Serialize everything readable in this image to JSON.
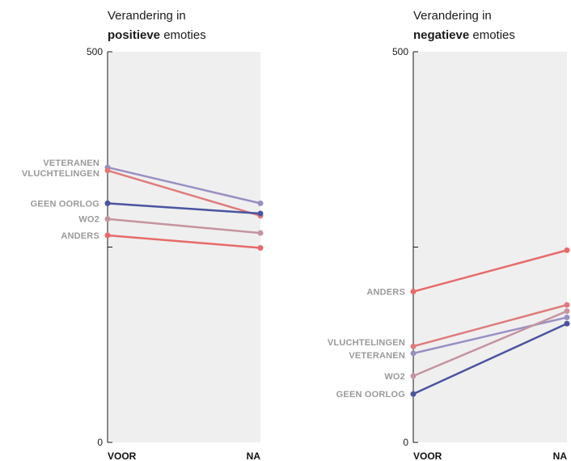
{
  "charts": [
    {
      "title_line1": "Verandering in",
      "title_bold": "positieve",
      "title_rest": " emoties",
      "y_top_label": "500",
      "y_zero_label": "0",
      "x_labels": [
        "VOOR",
        "NA"
      ]
    },
    {
      "title_line1": "Verandering in",
      "title_bold": "negatieve",
      "title_rest": " emoties",
      "y_top_label": "500",
      "y_zero_label": "0",
      "x_labels": [
        "VOOR",
        "NA"
      ]
    }
  ],
  "chart_data": [
    {
      "type": "line",
      "title": "Verandering in positieve emoties",
      "categories": [
        "VOOR",
        "NA"
      ],
      "ylim": [
        0,
        500
      ],
      "grid": false,
      "series": [
        {
          "name": "VETERANEN",
          "values": [
            352,
            306
          ],
          "color": "#9a8fc2"
        },
        {
          "name": "VLUCHTELINGEN",
          "values": [
            348,
            290
          ],
          "color": "#e07a7a"
        },
        {
          "name": "GEEN OORLOG",
          "values": [
            306,
            293
          ],
          "color": "#4a54a0"
        },
        {
          "name": "WO2",
          "values": [
            286,
            268
          ],
          "color": "#c4949f"
        },
        {
          "name": "ANDERS",
          "values": [
            265,
            249
          ],
          "color": "#e86a6a"
        }
      ]
    },
    {
      "type": "line",
      "title": "Verandering in negatieve emoties",
      "categories": [
        "VOOR",
        "NA"
      ],
      "ylim": [
        0,
        500
      ],
      "grid": false,
      "series": [
        {
          "name": "ANDERS",
          "values": [
            193,
            246
          ],
          "color": "#e86a6a"
        },
        {
          "name": "VLUCHTELINGEN",
          "values": [
            123,
            176
          ],
          "color": "#e07a7a"
        },
        {
          "name": "VETERANEN",
          "values": [
            114,
            160
          ],
          "color": "#9a8fc2"
        },
        {
          "name": "WO2",
          "values": [
            85,
            168
          ],
          "color": "#c4949f"
        },
        {
          "name": "GEEN OORLOG",
          "values": [
            62,
            152
          ],
          "color": "#4a54a0"
        }
      ]
    }
  ]
}
